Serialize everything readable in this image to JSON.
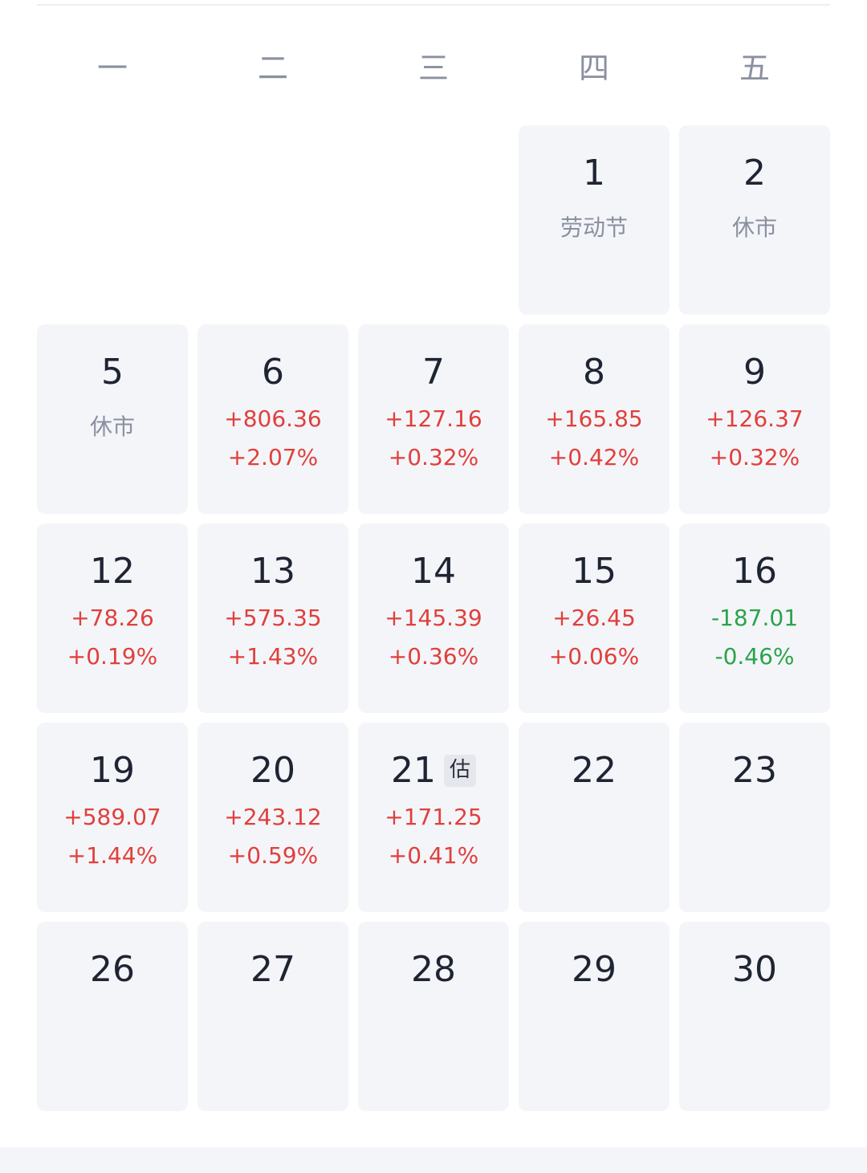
{
  "weekdays": [
    "一",
    "二",
    "三",
    "四",
    "五"
  ],
  "colors": {
    "up": "#e0403c",
    "down": "#2aa44a",
    "cell_bg": "#f4f5f9",
    "muted_text": "#8a90a0",
    "day_text": "#1f2433"
  },
  "weeks": [
    [
      null,
      null,
      null,
      {
        "day": "1",
        "note": "劳动节"
      },
      {
        "day": "2",
        "note": "休市"
      }
    ],
    [
      {
        "day": "5",
        "note": "休市"
      },
      {
        "day": "6",
        "change": "+806.36",
        "pct": "+2.07%",
        "trend": "up"
      },
      {
        "day": "7",
        "change": "+127.16",
        "pct": "+0.32%",
        "trend": "up"
      },
      {
        "day": "8",
        "change": "+165.85",
        "pct": "+0.42%",
        "trend": "up"
      },
      {
        "day": "9",
        "change": "+126.37",
        "pct": "+0.32%",
        "trend": "up"
      }
    ],
    [
      {
        "day": "12",
        "change": "+78.26",
        "pct": "+0.19%",
        "trend": "up"
      },
      {
        "day": "13",
        "change": "+575.35",
        "pct": "+1.43%",
        "trend": "up"
      },
      {
        "day": "14",
        "change": "+145.39",
        "pct": "+0.36%",
        "trend": "up"
      },
      {
        "day": "15",
        "change": "+26.45",
        "pct": "+0.06%",
        "trend": "up"
      },
      {
        "day": "16",
        "change": "-187.01",
        "pct": "-0.46%",
        "trend": "down"
      }
    ],
    [
      {
        "day": "19",
        "change": "+589.07",
        "pct": "+1.44%",
        "trend": "up"
      },
      {
        "day": "20",
        "change": "+243.12",
        "pct": "+0.59%",
        "trend": "up"
      },
      {
        "day": "21",
        "badge": "估",
        "change": "+171.25",
        "pct": "+0.41%",
        "trend": "up"
      },
      {
        "day": "22"
      },
      {
        "day": "23"
      }
    ],
    [
      {
        "day": "26"
      },
      {
        "day": "27"
      },
      {
        "day": "28"
      },
      {
        "day": "29"
      },
      {
        "day": "30"
      }
    ]
  ]
}
